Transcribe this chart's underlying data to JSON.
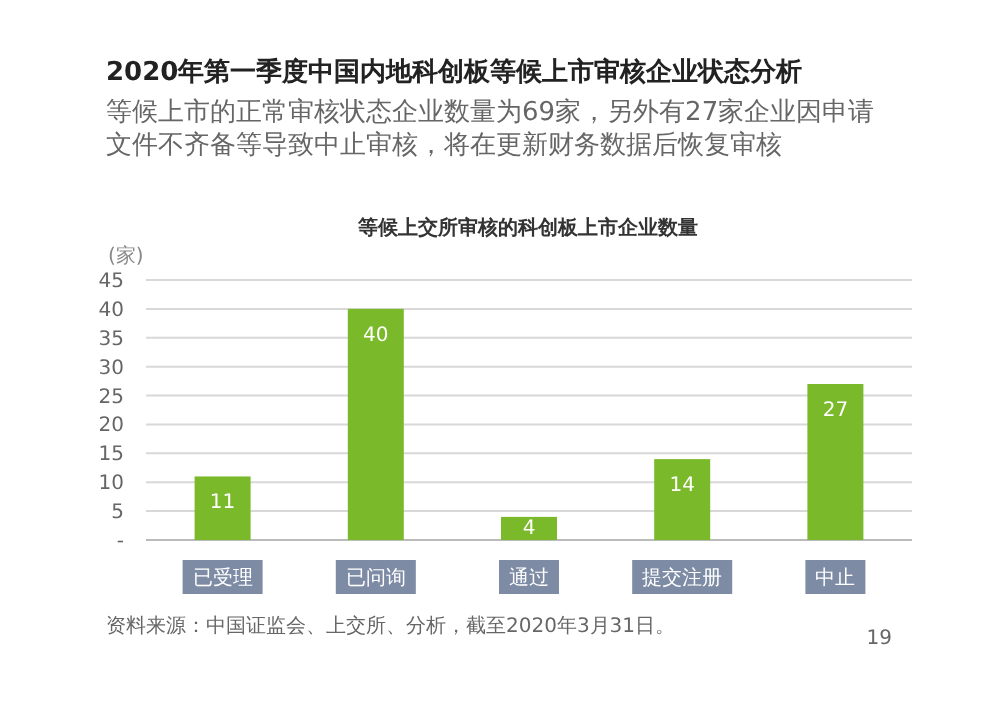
{
  "chart_data": {
    "type": "bar",
    "title": "2020年第一季度中国内地科创板等候上市审核企业状态分析",
    "subtitle": "等候上市的正常审核状态企业数量为69家，另外有27家企业因申请文件不齐备等导致中止审核，将在更新财务数据后恢复审核",
    "xlabel": "等候上交所审核的科创板上市企业数量",
    "ylabel": "(家)",
    "categories": [
      "已受理",
      "已问询",
      "通过",
      "提交注册",
      "中止"
    ],
    "values": [
      11,
      40,
      4,
      14,
      27
    ],
    "color": "#7ab929",
    "ylim": [
      0,
      45
    ],
    "yticks": [
      {
        "value": 0,
        "label": "-"
      },
      5,
      10,
      15,
      20,
      25,
      30,
      35,
      40,
      45
    ],
    "grid": "y",
    "data_labels": true,
    "annotations": [
      "资料来源：中国证监会、上交所、分析，截至2020年3月31日。",
      "19"
    ]
  }
}
